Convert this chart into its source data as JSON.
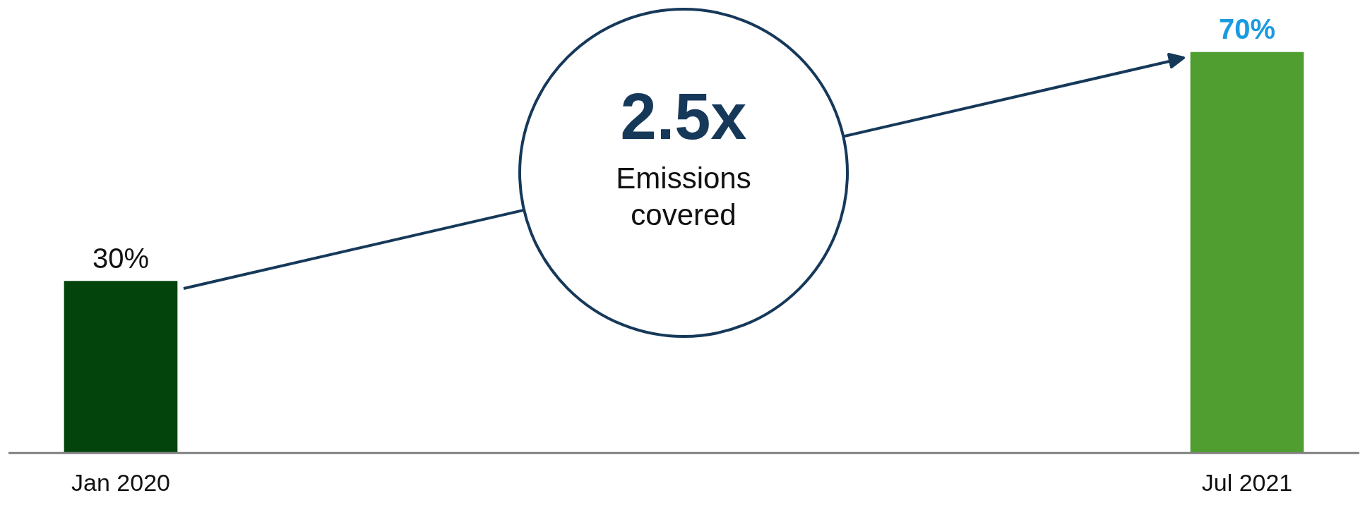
{
  "chart_data": {
    "type": "bar",
    "categories": [
      "Jan 2020",
      "Jul 2021"
    ],
    "values": [
      30,
      70
    ],
    "colors": [
      "#03440c",
      "#4f9e2f"
    ],
    "value_labels": [
      "30%",
      "70%"
    ],
    "annotations": [
      "2.5x",
      "Emissions covered"
    ]
  }
}
